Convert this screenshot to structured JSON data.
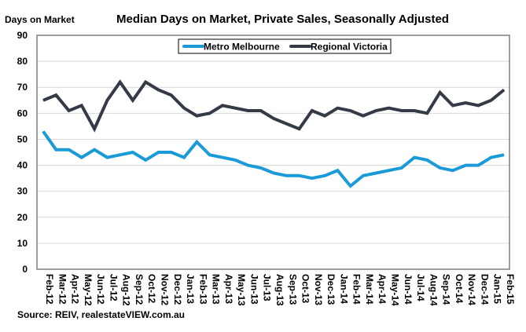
{
  "chart_data": {
    "type": "line",
    "title": "Median Days on Market, Private Sales, Seasonally Adjusted",
    "ylabel": "Days on Market",
    "xlabel": "",
    "source": "Source:  REIV, realestateVIEW.com.au",
    "ylim": [
      0,
      90
    ],
    "yticks": [
      0,
      10,
      20,
      30,
      40,
      50,
      60,
      70,
      80,
      90
    ],
    "grid": true,
    "legend_position": "top-center",
    "categories": [
      "Feb-12",
      "Mar-12",
      "Apr-12",
      "May-12",
      "Jun-12",
      "Jul-12",
      "Aug-12",
      "Sep-12",
      "Oct-12",
      "Nov-12",
      "Dec-12",
      "Jan-13",
      "Feb-13",
      "Mar-13",
      "Apr-13",
      "May-13",
      "Jun-13",
      "Jul-13",
      "Aug-13",
      "Sep-13",
      "Oct-13",
      "Nov-13",
      "Dec-13",
      "Jan-14",
      "Feb-14",
      "Mar-14",
      "Apr-14",
      "May-14",
      "Jun-14",
      "Jul-14",
      "Aug-14",
      "Sep-14",
      "Oct-14",
      "Nov-14",
      "Dec-14",
      "Jan-15",
      "Feb-15"
    ],
    "series": [
      {
        "name": "Metro Melbourne",
        "color": "#1a9ad6",
        "values": [
          53,
          46,
          46,
          43,
          46,
          43,
          44,
          45,
          42,
          45,
          45,
          43,
          49,
          44,
          43,
          42,
          40,
          39,
          37,
          36,
          36,
          35,
          36,
          38,
          32,
          36,
          37,
          38,
          39,
          43,
          42,
          39,
          38,
          40,
          40,
          43,
          44
        ]
      },
      {
        "name": "Regional Victoria",
        "color": "#343b46",
        "values": [
          65,
          67,
          61,
          63,
          54,
          65,
          72,
          65,
          72,
          69,
          67,
          62,
          59,
          60,
          63,
          62,
          61,
          61,
          58,
          56,
          54,
          61,
          59,
          62,
          61,
          59,
          61,
          62,
          61,
          61,
          60,
          68,
          63,
          64,
          63,
          65,
          69
        ]
      }
    ]
  }
}
